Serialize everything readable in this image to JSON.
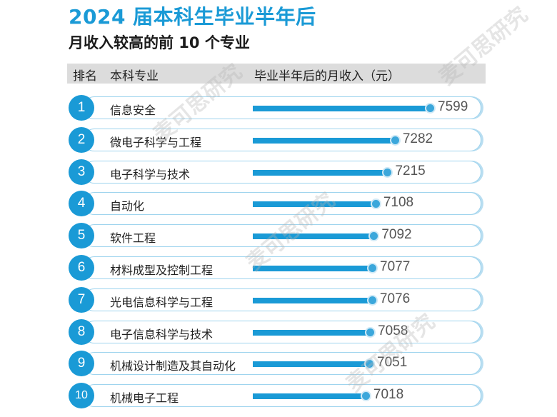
{
  "title": "2024 届本科生毕业半年后",
  "subtitle": "月收入较高的前 10 个专业",
  "watermark": "麦可思研究",
  "colors": {
    "accent": "#1a9ad6",
    "header_bg": "#dcdcdc"
  },
  "table": {
    "headers": {
      "rank": "排名",
      "major": "本科专业",
      "income": "毕业半年后的月收入（元）"
    }
  },
  "chart_data": {
    "type": "bar",
    "title": "2024 届本科生毕业半年后",
    "subtitle": "月收入较高的前 10 个专业",
    "ylabel": "毕业半年后的月收入（元）",
    "ranks": [
      "1",
      "2",
      "3",
      "4",
      "5",
      "6",
      "7",
      "8",
      "9",
      "10"
    ],
    "categories": [
      "信息安全",
      "微电子科学与工程",
      "电子科学与技术",
      "自动化",
      "软件工程",
      "材料成型及控制工程",
      "光电信息科学与工程",
      "电子信息科学与技术",
      "机械设计制造及其自动化",
      "机械电子工程"
    ],
    "values": [
      7599,
      7282,
      7215,
      7108,
      7092,
      7077,
      7076,
      7058,
      7051,
      7018
    ],
    "value_labels": [
      "7599",
      "7282",
      "7215",
      "7108",
      "7092",
      "7077",
      "7076",
      "7058",
      "7051",
      "7018"
    ]
  }
}
